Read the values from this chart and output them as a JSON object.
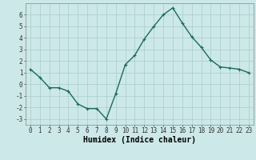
{
  "x": [
    0,
    1,
    2,
    3,
    4,
    5,
    6,
    7,
    8,
    9,
    10,
    11,
    12,
    13,
    14,
    15,
    16,
    17,
    18,
    19,
    20,
    21,
    22,
    23
  ],
  "y": [
    1.3,
    0.6,
    -0.3,
    -0.3,
    -0.6,
    -1.7,
    -2.1,
    -2.1,
    -3.0,
    -0.8,
    1.7,
    2.5,
    3.9,
    5.0,
    6.0,
    6.6,
    5.3,
    4.1,
    3.2,
    2.1,
    1.5,
    1.4,
    1.3,
    1.0
  ],
  "line_color": "#1a6b5a",
  "marker": "+",
  "marker_size": 3,
  "bg_color": "#cce8e8",
  "grid_color": "#aacccc",
  "xlabel": "Humidex (Indice chaleur)",
  "ylim": [
    -3.5,
    7.0
  ],
  "xlim": [
    -0.5,
    23.5
  ],
  "yticks": [
    -3,
    -2,
    -1,
    0,
    1,
    2,
    3,
    4,
    5,
    6
  ],
  "xticks": [
    0,
    1,
    2,
    3,
    4,
    5,
    6,
    7,
    8,
    9,
    10,
    11,
    12,
    13,
    14,
    15,
    16,
    17,
    18,
    19,
    20,
    21,
    22,
    23
  ],
  "tick_fontsize": 5.5,
  "xlabel_fontsize": 7,
  "line_width": 1.0,
  "marker_edge_width": 0.8
}
